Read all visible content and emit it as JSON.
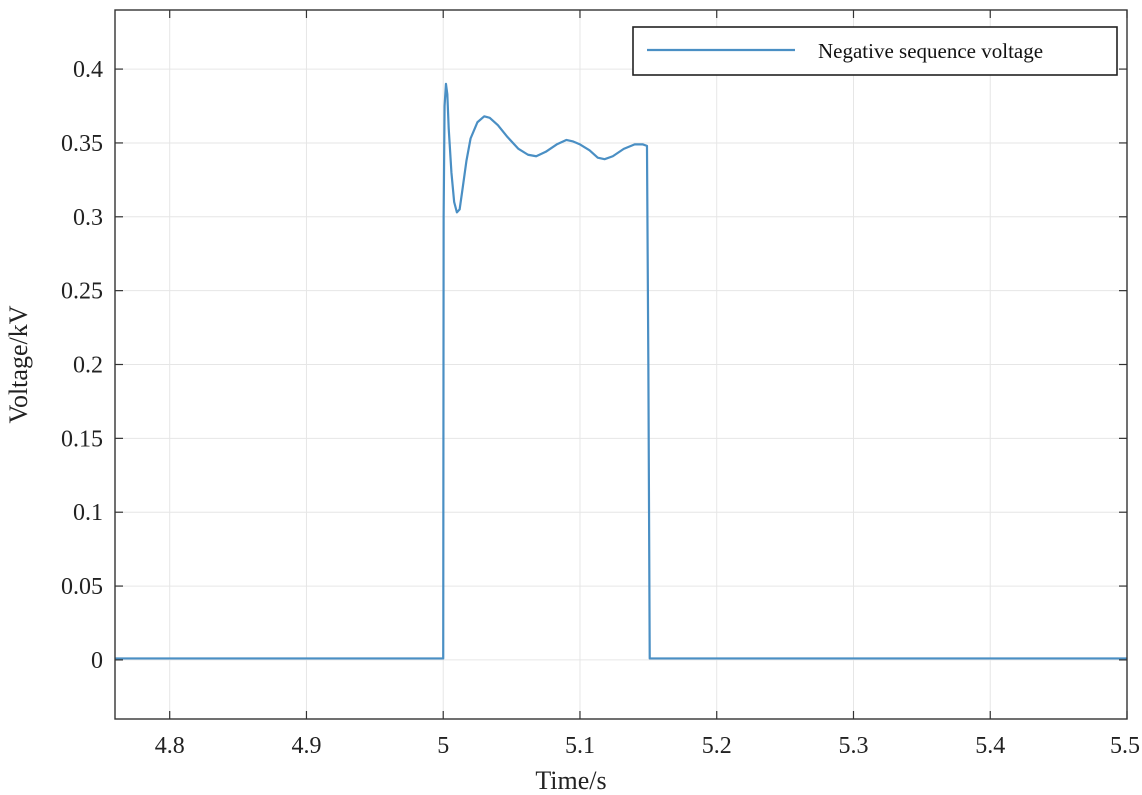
{
  "chart_data": {
    "type": "line",
    "title": "",
    "xlabel": "Time/s",
    "ylabel": "Voltage/kV",
    "xlim": [
      4.76,
      5.5
    ],
    "ylim": [
      -0.04,
      0.44
    ],
    "xticks": [
      4.8,
      4.9,
      5,
      5.1,
      5.2,
      5.3,
      5.4,
      5.5
    ],
    "xtick_labels": [
      "4.8",
      "4.9",
      "5",
      "5.1",
      "5.2",
      "5.3",
      "5.4",
      "5.5"
    ],
    "yticks": [
      0,
      0.05,
      0.1,
      0.15,
      0.2,
      0.25,
      0.3,
      0.35,
      0.4
    ],
    "ytick_labels": [
      "0",
      "0.05",
      "0.1",
      "0.15",
      "0.2",
      "0.25",
      "0.3",
      "0.35",
      "0.4"
    ],
    "grid": true,
    "legend_position": "top-right",
    "series": [
      {
        "name": "Negative sequence voltage",
        "color": "#4a8fc4",
        "x": [
          4.76,
          5.0,
          5.0003,
          5.001,
          5.002,
          5.003,
          5.004,
          5.006,
          5.008,
          5.01,
          5.012,
          5.014,
          5.017,
          5.02,
          5.025,
          5.03,
          5.034,
          5.04,
          5.047,
          5.055,
          5.062,
          5.068,
          5.075,
          5.083,
          5.09,
          5.095,
          5.1,
          5.107,
          5.113,
          5.118,
          5.124,
          5.132,
          5.14,
          5.146,
          5.149,
          5.15,
          5.151,
          5.5
        ],
        "y": [
          0.001,
          0.001,
          0.3,
          0.375,
          0.39,
          0.383,
          0.36,
          0.33,
          0.31,
          0.303,
          0.305,
          0.318,
          0.338,
          0.353,
          0.364,
          0.368,
          0.367,
          0.362,
          0.354,
          0.346,
          0.342,
          0.341,
          0.344,
          0.349,
          0.352,
          0.351,
          0.349,
          0.345,
          0.34,
          0.339,
          0.341,
          0.346,
          0.349,
          0.349,
          0.348,
          0.2,
          0.001,
          0.001
        ]
      }
    ]
  }
}
